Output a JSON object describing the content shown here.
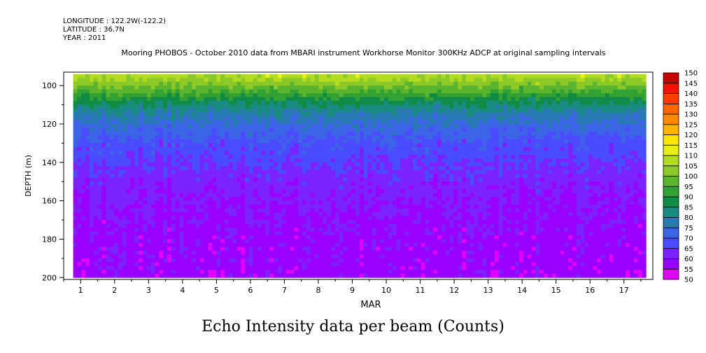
{
  "header": {
    "longitude": "LONGITUDE : 122.2W(-122.2)",
    "latitude": "LATITUDE : 36.7N",
    "year": "YEAR : 2011"
  },
  "caption": "Echo Intensity data per beam (Counts)",
  "chart_data": {
    "type": "heatmap",
    "title": "Mooring PHOBOS - October 2010 data from MBARI instrument Workhorse Monitor 300KHz ADCP at original sampling intervals",
    "xlabel": "MAR",
    "ylabel": "DEPTH (m)",
    "x_ticks": [
      "1",
      "2",
      "3",
      "4",
      "5",
      "6",
      "7",
      "8",
      "9",
      "10",
      "11",
      "12",
      "13",
      "14",
      "15",
      "16",
      "17"
    ],
    "xlim": [
      0.5,
      17.85
    ],
    "ylim": [
      93,
      201
    ],
    "y_inverted": true,
    "y_ticks": [
      100,
      120,
      140,
      160,
      180,
      200
    ],
    "y_tick_labels": [
      "100",
      "120",
      "140",
      "160",
      "180",
      "200"
    ],
    "data_time_range": [
      0.78,
      17.65
    ],
    "data_depth_range": [
      94,
      200
    ],
    "colorbar": {
      "levels": [
        "50",
        "55",
        "60",
        "65",
        "70",
        "75",
        "80",
        "85",
        "90",
        "95",
        "100",
        "105",
        "110",
        "115",
        "120",
        "125",
        "130",
        "135",
        "140",
        "145",
        "150"
      ],
      "colors": [
        "#e000ff",
        "#9a00ff",
        "#7b22ff",
        "#4b4bff",
        "#3c64e6",
        "#2878b4",
        "#198c82",
        "#0f8c46",
        "#32a032",
        "#5ab42d",
        "#8cc828",
        "#b4dc1e",
        "#e6f014",
        "#ffe600",
        "#ffb400",
        "#ff8c00",
        "#ff6400",
        "#ff3c00",
        "#f01400",
        "#c80000"
      ]
    },
    "depth_profile": [
      {
        "depth": 94,
        "value": 108
      },
      {
        "depth": 98,
        "value": 103
      },
      {
        "depth": 102,
        "value": 97
      },
      {
        "depth": 106,
        "value": 90
      },
      {
        "depth": 110,
        "value": 84
      },
      {
        "depth": 115,
        "value": 78
      },
      {
        "depth": 120,
        "value": 74
      },
      {
        "depth": 125,
        "value": 71
      },
      {
        "depth": 130,
        "value": 68
      },
      {
        "depth": 140,
        "value": 65
      },
      {
        "depth": 150,
        "value": 62
      },
      {
        "depth": 160,
        "value": 60
      },
      {
        "depth": 180,
        "value": 58
      },
      {
        "depth": 200,
        "value": 57
      }
    ]
  }
}
